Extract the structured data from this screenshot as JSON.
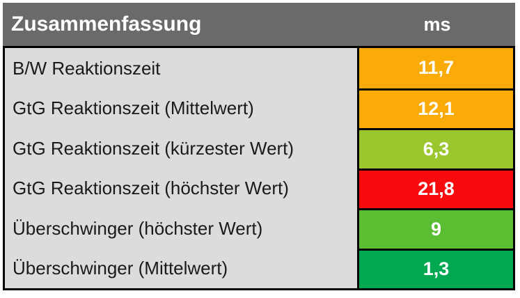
{
  "chart_data": {
    "type": "table",
    "title": "Zusammenfassung",
    "unit_header": "ms",
    "legend_position": "none",
    "grid": false,
    "rows": [
      {
        "label": "B/W Reaktionszeit",
        "value": "11,7",
        "value_num": 11.7,
        "color": "#FBAB08",
        "color_name": "orange"
      },
      {
        "label": "GtG Reaktionszeit (Mittelwert)",
        "value": "12,1",
        "value_num": 12.1,
        "color": "#FBAB08",
        "color_name": "orange"
      },
      {
        "label": "GtG Reaktionszeit (kürzester Wert)",
        "value": "6,3",
        "value_num": 6.3,
        "color": "#9BC62D",
        "color_name": "yellow-green"
      },
      {
        "label": "GtG Reaktionszeit (höchster Wert)",
        "value": "21,8",
        "value_num": 21.8,
        "color": "#F80B0D",
        "color_name": "red"
      },
      {
        "label": "Überschwinger (höchster Wert)",
        "value": "9",
        "value_num": 9,
        "color": "#5BBD32",
        "color_name": "green"
      },
      {
        "label": "Überschwinger (Mittelwert)",
        "value": "1,3",
        "value_num": 1.3,
        "color": "#00A951",
        "color_name": "dark-green"
      }
    ],
    "colors": {
      "header_background": "#6A6A6A",
      "header_text": "#FFFFFF",
      "label_background": "#DCDCDC",
      "label_text": "#1A1A1A",
      "value_text": "#FFFFFF",
      "border": "#000000",
      "page_background": "#FFFFFF"
    }
  }
}
